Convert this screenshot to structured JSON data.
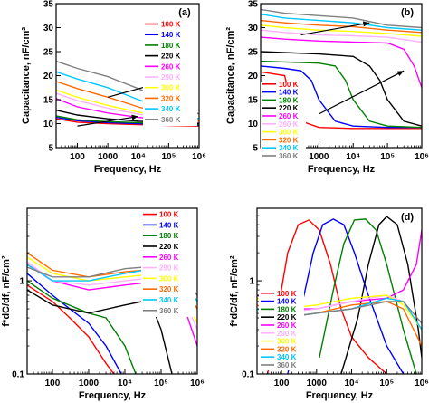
{
  "temperatures": [
    "100 K",
    "140 K",
    "180 K",
    "220 K",
    "260 K",
    "290 K",
    "300 K",
    "320 K",
    "340 K",
    "360 K"
  ],
  "colors": [
    "#ff0000",
    "#0000ff",
    "#008000",
    "#000000",
    "#ff00ff",
    "#ffb0ff",
    "#ffff00",
    "#ff6a00",
    "#00c8ff",
    "#808080"
  ],
  "chart_data": [
    {
      "type": "line",
      "panel_label": "(a)",
      "xlabel": "Frequency, Hz",
      "ylabel": "Capacitance, nF/cm²",
      "xscale": "log",
      "xlim": [
        20,
        1000000
      ],
      "ylim": [
        5,
        35
      ],
      "xticks": [
        "100",
        "1000",
        "10⁴",
        "10⁵",
        "10⁶"
      ],
      "yticks": [
        "5",
        "10",
        "15",
        "20",
        "25",
        "30",
        "35"
      ],
      "legend_placement": "top-right",
      "series": [
        {
          "name": "100 K",
          "x": [
            20,
            100,
            1000,
            10000,
            100000,
            1000000
          ],
          "y": [
            11.0,
            10.3,
            10.0,
            9.8,
            9.6,
            9.5
          ]
        },
        {
          "name": "140 K",
          "x": [
            20,
            100,
            1000,
            10000,
            100000,
            1000000
          ],
          "y": [
            11.3,
            10.6,
            10.2,
            10.0,
            9.8,
            9.6
          ]
        },
        {
          "name": "180 K",
          "x": [
            20,
            100,
            1000,
            10000,
            100000,
            1000000
          ],
          "y": [
            11.6,
            10.8,
            10.4,
            10.2,
            10.0,
            9.8
          ]
        },
        {
          "name": "220 K",
          "x": [
            20,
            100,
            1000,
            10000,
            100000,
            1000000
          ],
          "y": [
            12.8,
            11.8,
            11.0,
            10.5,
            10.2,
            10.0
          ]
        },
        {
          "name": "260 K",
          "x": [
            20,
            100,
            1000,
            10000,
            100000,
            1000000
          ],
          "y": [
            15.2,
            13.5,
            12.2,
            11.3,
            10.6,
            10.3
          ]
        },
        {
          "name": "290 K",
          "x": [
            20,
            100,
            1000,
            10000,
            100000,
            1000000
          ],
          "y": [
            16.3,
            14.8,
            13.2,
            12.0,
            11.0,
            10.4
          ]
        },
        {
          "name": "300 K",
          "x": [
            20,
            100,
            1000,
            10000,
            100000,
            1000000
          ],
          "y": [
            17.0,
            15.5,
            13.8,
            12.4,
            11.2,
            10.5
          ]
        },
        {
          "name": "320 K",
          "x": [
            20,
            100,
            1000,
            10000,
            100000,
            1000000
          ],
          "y": [
            18.8,
            17.3,
            15.5,
            13.5,
            11.8,
            10.7
          ]
        },
        {
          "name": "340 K",
          "x": [
            20,
            100,
            1000,
            10000,
            100000,
            1000000
          ],
          "y": [
            20.8,
            19.3,
            17.5,
            15.0,
            12.8,
            11.0
          ]
        },
        {
          "name": "360 K",
          "x": [
            20,
            100,
            1000,
            10000,
            100000,
            1000000
          ],
          "y": [
            23.0,
            21.5,
            19.8,
            17.3,
            14.5,
            12.0
          ]
        }
      ],
      "arrows": [
        {
          "from": [
            1000,
            15.5
          ],
          "to": [
            100000,
            19.0
          ]
        },
        {
          "from": [
            100,
            9.5
          ],
          "to": [
            10000,
            11.5
          ]
        }
      ]
    },
    {
      "type": "line",
      "panel_label": "(b)",
      "xlabel": "Frequency, Hz",
      "ylabel": "Capacitance, nF/cm²",
      "xscale": "log",
      "xlim": [
        20,
        1000000
      ],
      "ylim": [
        5,
        35
      ],
      "xticks": [
        "100",
        "1000",
        "10⁴",
        "10⁵",
        "10⁶"
      ],
      "yticks": [
        "5",
        "10",
        "15",
        "20",
        "25",
        "30",
        "35"
      ],
      "legend_placement": "bottom-left",
      "series": [
        {
          "name": "100 K",
          "x": [
            20,
            100,
            150,
            300,
            1000,
            10000,
            100000,
            1000000
          ],
          "y": [
            20.8,
            20.0,
            15.0,
            10.5,
            9.2,
            9.0,
            9.0,
            9.0
          ]
        },
        {
          "name": "140 K",
          "x": [
            20,
            100,
            300,
            600,
            1000,
            3000,
            10000,
            100000,
            1000000
          ],
          "y": [
            22.0,
            21.5,
            21.0,
            19.0,
            15.0,
            10.5,
            9.5,
            9.2,
            9.2
          ]
        },
        {
          "name": "180 K",
          "x": [
            20,
            1000,
            3000,
            6000,
            10000,
            30000,
            100000,
            1000000
          ],
          "y": [
            23.0,
            22.6,
            22.0,
            19.0,
            15.0,
            10.5,
            9.5,
            9.2
          ]
        },
        {
          "name": "220 K",
          "x": [
            20,
            1000,
            10000,
            30000,
            60000,
            100000,
            300000,
            1000000
          ],
          "y": [
            25.0,
            24.5,
            24.0,
            22.0,
            19.0,
            15.0,
            10.5,
            9.5
          ]
        },
        {
          "name": "260 K",
          "x": [
            20,
            100,
            1000,
            10000,
            100000,
            300000,
            600000,
            1000000
          ],
          "y": [
            28.0,
            27.6,
            27.2,
            27.0,
            26.8,
            25.5,
            22.0,
            17.5
          ]
        },
        {
          "name": "290 K",
          "x": [
            20,
            100,
            1000,
            10000,
            100000,
            1000000
          ],
          "y": [
            29.5,
            29.0,
            28.5,
            28.3,
            28.0,
            27.0
          ]
        },
        {
          "name": "300 K",
          "x": [
            20,
            100,
            1000,
            10000,
            100000,
            1000000
          ],
          "y": [
            30.5,
            30.0,
            29.5,
            29.2,
            28.8,
            28.2
          ]
        },
        {
          "name": "320 K",
          "x": [
            20,
            100,
            1000,
            10000,
            100000,
            1000000
          ],
          "y": [
            31.5,
            31.0,
            30.5,
            30.2,
            29.5,
            29.0
          ]
        },
        {
          "name": "340 K",
          "x": [
            20,
            100,
            1000,
            10000,
            100000,
            1000000
          ],
          "y": [
            32.8,
            32.0,
            31.5,
            31.0,
            30.0,
            29.5
          ]
        },
        {
          "name": "360 K",
          "x": [
            20,
            100,
            1000,
            10000,
            100000,
            1000000
          ],
          "y": [
            33.8,
            33.0,
            32.5,
            32.0,
            30.5,
            30.0
          ]
        }
      ],
      "arrows": [
        {
          "from": [
            300,
            28.5
          ],
          "to": [
            30000,
            31.0
          ]
        },
        {
          "from": [
            1000,
            12.0
          ],
          "to": [
            300000,
            21.0
          ]
        }
      ]
    },
    {
      "type": "line",
      "panel_label": "(c)",
      "xlabel": "Frequency, Hz",
      "ylabel": "f*dC/df, nF/cm²",
      "xscale": "log",
      "yscale": "log",
      "xlim": [
        20,
        1000000
      ],
      "ylim": [
        0.1,
        6
      ],
      "xticks": [
        "100",
        "1000",
        "10⁴",
        "10⁵",
        "10⁶"
      ],
      "yticks": [
        "0.1",
        "1"
      ],
      "legend_placement": "top-right",
      "series": [
        {
          "name": "100 K",
          "x": [
            20,
            100,
            300,
            1000,
            3000,
            5000
          ],
          "y": [
            0.9,
            0.6,
            0.4,
            0.25,
            0.13,
            0.1
          ]
        },
        {
          "name": "140 K",
          "x": [
            20,
            100,
            300,
            1000,
            3000,
            8000
          ],
          "y": [
            1.2,
            0.7,
            0.5,
            0.35,
            0.2,
            0.1
          ]
        },
        {
          "name": "180 K",
          "x": [
            20,
            100,
            1000,
            3000,
            10000,
            20000
          ],
          "y": [
            1.0,
            0.65,
            0.45,
            0.4,
            0.2,
            0.1
          ]
        },
        {
          "name": "220 K",
          "x": [
            20,
            100,
            1000,
            10000,
            30000,
            60000,
            100000,
            200000
          ],
          "y": [
            0.8,
            0.55,
            0.45,
            0.55,
            0.6,
            0.5,
            0.3,
            0.1
          ]
        },
        {
          "name": "260 K",
          "x": [
            20,
            100,
            1000,
            10000,
            100000,
            300000,
            1000000
          ],
          "y": [
            1.5,
            1.0,
            0.8,
            0.9,
            1.0,
            0.8,
            0.2
          ]
        },
        {
          "name": "290 K",
          "x": [
            20,
            100,
            1000,
            10000,
            100000,
            300000,
            1000000
          ],
          "y": [
            1.6,
            1.0,
            0.9,
            1.0,
            1.1,
            0.9,
            0.3
          ]
        },
        {
          "name": "300 K",
          "x": [
            20,
            100,
            1000,
            10000,
            100000,
            300000,
            1000000
          ],
          "y": [
            1.8,
            1.2,
            1.0,
            1.1,
            1.2,
            1.0,
            0.35
          ]
        },
        {
          "name": "320 K",
          "x": [
            20,
            100,
            1000,
            10000,
            100000,
            300000,
            1000000
          ],
          "y": [
            2.0,
            1.3,
            1.1,
            1.25,
            1.35,
            1.1,
            0.5
          ]
        },
        {
          "name": "340 K",
          "x": [
            20,
            100,
            1000,
            10000,
            100000,
            300000,
            1000000
          ],
          "y": [
            1.5,
            1.0,
            1.0,
            1.2,
            1.4,
            1.2,
            0.6
          ]
        },
        {
          "name": "360 K",
          "x": [
            20,
            100,
            1000,
            10000,
            100000,
            300000,
            1000000
          ],
          "y": [
            1.4,
            1.1,
            1.1,
            1.35,
            1.45,
            1.3,
            0.7
          ]
        }
      ]
    },
    {
      "type": "line",
      "panel_label": "(d)",
      "xlabel": "Frequency, Hz",
      "ylabel": "f*dC/df, nF/cm²",
      "xscale": "log",
      "yscale": "log",
      "xlim": [
        20,
        1000000
      ],
      "ylim": [
        0.1,
        6
      ],
      "xticks": [
        "100",
        "1000",
        "10⁴",
        "10⁵",
        "10⁶"
      ],
      "yticks": [
        "0.1",
        "1"
      ],
      "legend_placement": "bottom-left",
      "series": [
        {
          "name": "100 K",
          "x": [
            40,
            80,
            150,
            300,
            600,
            1200,
            2500,
            5000,
            10000,
            30000,
            100000
          ],
          "y": [
            0.1,
            0.5,
            2.0,
            4.0,
            4.5,
            3.5,
            1.5,
            0.5,
            0.25,
            0.15,
            0.1
          ]
        },
        {
          "name": "140 K",
          "x": [
            150,
            400,
            800,
            1500,
            3000,
            6000,
            12000,
            30000,
            100000,
            300000
          ],
          "y": [
            0.1,
            0.6,
            2.0,
            4.0,
            4.6,
            4.0,
            2.0,
            0.7,
            0.2,
            0.1
          ]
        },
        {
          "name": "180 K",
          "x": [
            1200,
            3000,
            6000,
            12000,
            25000,
            50000,
            100000,
            300000,
            700000
          ],
          "y": [
            0.15,
            0.8,
            2.5,
            4.5,
            4.6,
            3.5,
            1.5,
            0.3,
            0.1
          ]
        },
        {
          "name": "220 K",
          "x": [
            5000,
            15000,
            30000,
            60000,
            100000,
            200000,
            400000,
            800000,
            1000000
          ],
          "y": [
            0.1,
            0.4,
            1.5,
            4.0,
            4.9,
            4.0,
            1.5,
            0.3,
            0.15
          ]
        },
        {
          "name": "260 K",
          "x": [
            20,
            100,
            1000,
            10000,
            100000,
            300000,
            700000,
            1000000
          ],
          "y": [
            0.7,
            0.5,
            0.5,
            0.6,
            0.65,
            0.8,
            1.5,
            3.5
          ]
        },
        {
          "name": "290 K",
          "x": [
            20,
            100,
            1000,
            10000,
            100000,
            300000,
            1000000
          ],
          "y": [
            0.6,
            0.45,
            0.5,
            0.6,
            0.7,
            0.6,
            0.3
          ]
        },
        {
          "name": "300 K",
          "x": [
            20,
            100,
            1000,
            10000,
            100000,
            300000,
            1000000
          ],
          "y": [
            0.65,
            0.5,
            0.55,
            0.65,
            0.7,
            0.55,
            0.3
          ]
        },
        {
          "name": "320 K",
          "x": [
            20,
            100,
            1000,
            10000,
            100000,
            300000,
            1000000
          ],
          "y": [
            0.55,
            0.4,
            0.45,
            0.55,
            0.6,
            0.5,
            0.2
          ]
        },
        {
          "name": "340 K",
          "x": [
            20,
            100,
            1000,
            10000,
            100000,
            300000,
            1000000
          ],
          "y": [
            0.5,
            0.4,
            0.45,
            0.5,
            0.65,
            0.6,
            0.3
          ]
        },
        {
          "name": "360 K",
          "x": [
            20,
            100,
            1000,
            10000,
            100000,
            300000,
            1000000
          ],
          "y": [
            0.45,
            0.4,
            0.45,
            0.5,
            0.6,
            0.6,
            0.35
          ]
        }
      ]
    }
  ]
}
